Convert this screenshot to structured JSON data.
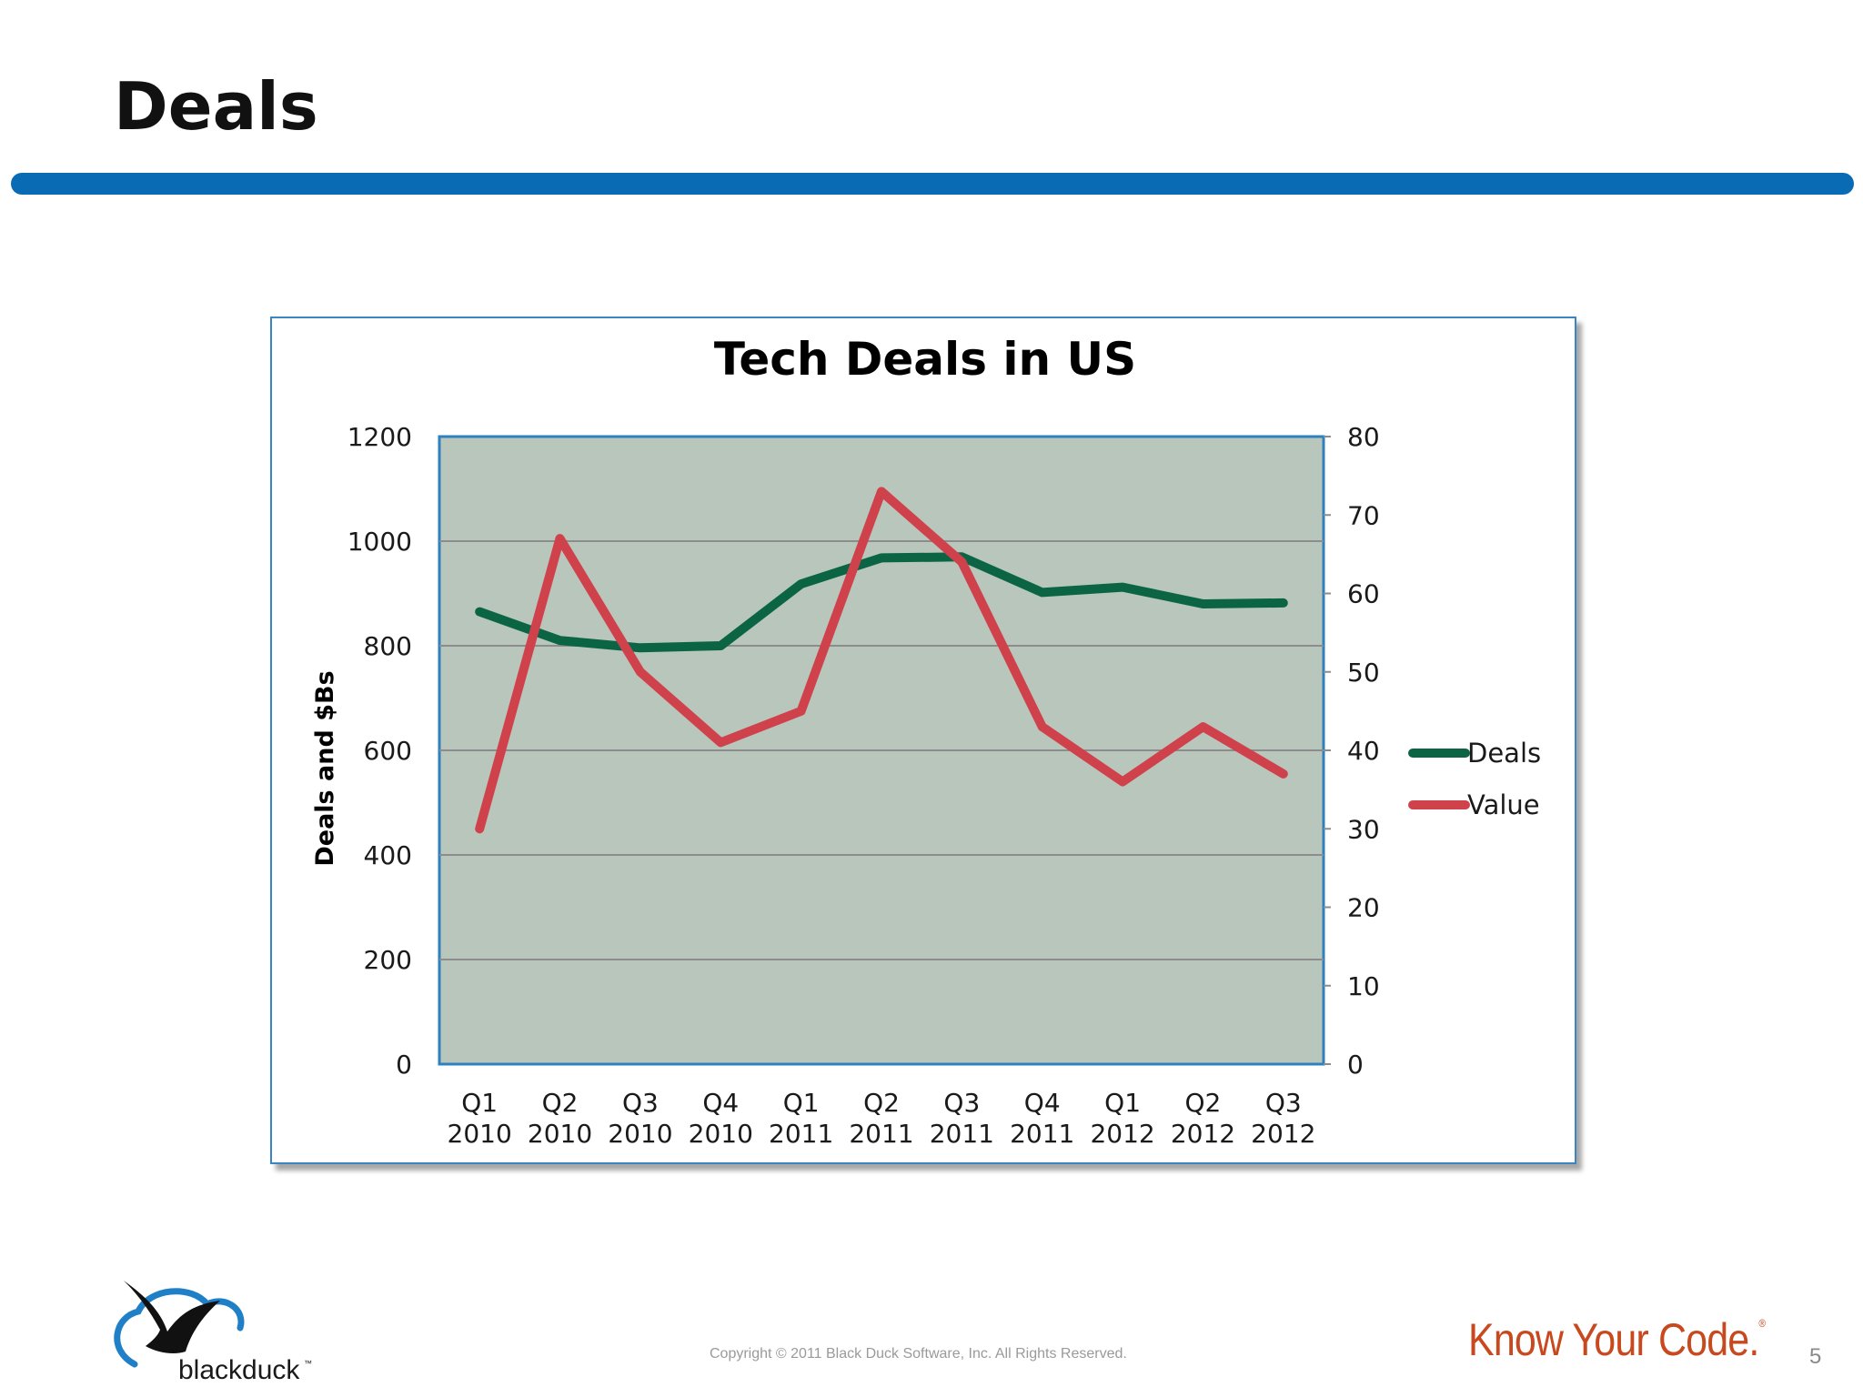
{
  "slide": {
    "title": "Deals",
    "copyright": "Copyright © 2011 Black Duck Software, Inc.  All Rights Reserved.",
    "tagline": "Know Your Code.",
    "tagline_mark": "®",
    "page_number": "5",
    "logo_text": "blackduck",
    "logo_mark": "™"
  },
  "colors": {
    "title_rule": "#0a6bb5",
    "plot_background": "#b8c6bb",
    "deals": "#0b6544",
    "value": "#cf424c",
    "tagline": "#c9491f"
  },
  "chart_data": {
    "type": "line",
    "title": "Tech Deals in US",
    "ylabel": "Deals and $Bs",
    "categories": [
      [
        "Q1",
        "2010"
      ],
      [
        "Q2",
        "2010"
      ],
      [
        "Q3",
        "2010"
      ],
      [
        "Q4",
        "2010"
      ],
      [
        "Q1",
        "2011"
      ],
      [
        "Q2",
        "2011"
      ],
      [
        "Q3",
        "2011"
      ],
      [
        "Q4",
        "2011"
      ],
      [
        "Q1",
        "2012"
      ],
      [
        "Q2",
        "2012"
      ],
      [
        "Q3",
        "2012"
      ]
    ],
    "ylim": [
      0,
      1200
    ],
    "y_ticks": [
      0,
      200,
      400,
      600,
      800,
      1000,
      1200
    ],
    "y2lim": [
      0,
      80
    ],
    "y2_ticks": [
      0,
      10,
      20,
      30,
      40,
      50,
      60,
      70,
      80
    ],
    "grid": true,
    "legend_position": "right",
    "series": [
      {
        "name": "Deals",
        "axis": "left",
        "color": "#0b6544",
        "values": [
          865,
          810,
          796,
          800,
          918,
          968,
          970,
          902,
          912,
          880,
          882
        ]
      },
      {
        "name": "Value",
        "axis": "right",
        "color": "#cf424c",
        "values": [
          30,
          67,
          50,
          41,
          45,
          73,
          64,
          43,
          36,
          43,
          37
        ]
      }
    ]
  }
}
